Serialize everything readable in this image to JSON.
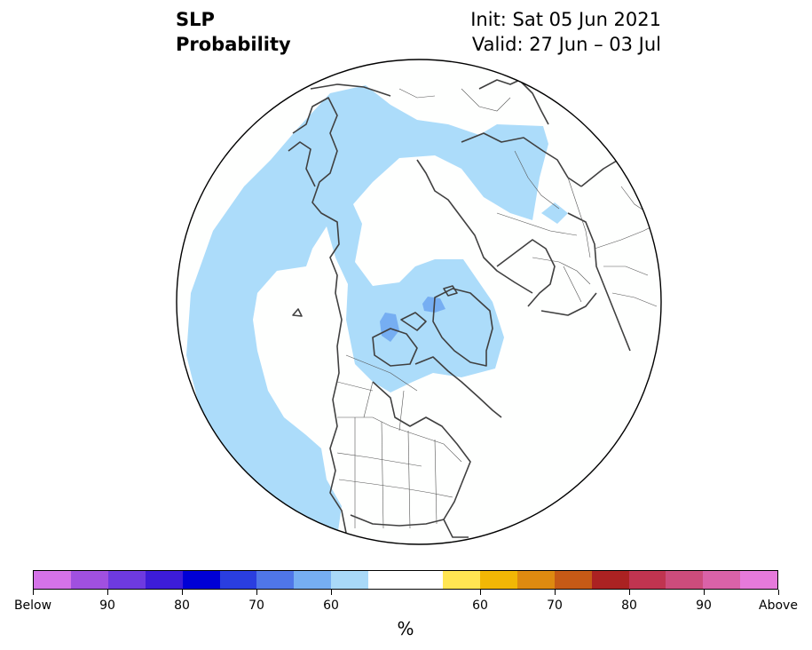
{
  "header": {
    "variable": "SLP",
    "product": "Probability",
    "init": "Init: Sat 05 Jun 2021",
    "valid": "Valid: 27 Jun – 03 Jul"
  },
  "map": {
    "projection": "north-polar-stereographic",
    "land_outline_color": "#404040",
    "border_color": "#555555"
  },
  "colorbar": {
    "colors": [
      "#d572e8",
      "#a050e0",
      "#6e3ae0",
      "#3d1cd8",
      "#0000d6",
      "#2a3ee0",
      "#4f76e8",
      "#76aef2",
      "#a9d9f8",
      "#ffffff",
      "#ffffff",
      "#ffe552",
      "#f2b705",
      "#de8a10",
      "#c65a16",
      "#ab2222",
      "#c03450",
      "#cc4c7c",
      "#da62a8",
      "#e67adb"
    ],
    "tick_labels": [
      "Below",
      "90",
      "80",
      "70",
      "60",
      "60",
      "70",
      "80",
      "90",
      "Above"
    ],
    "unit": "%"
  }
}
